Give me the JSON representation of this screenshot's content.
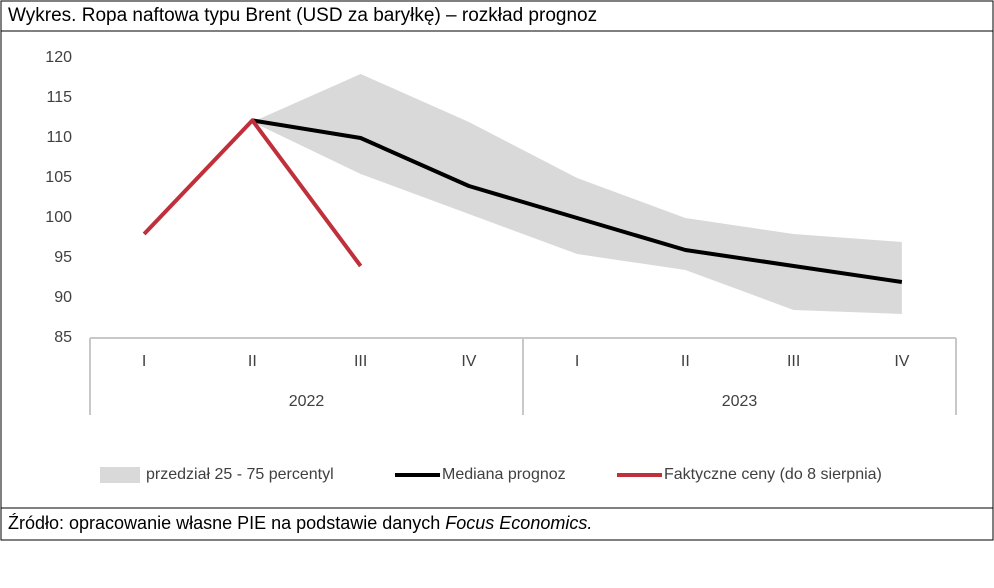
{
  "title": "Wykres. Ropa naftowa typu Brent (USD za baryłkę) – rozkład prognoz",
  "chart_data": {
    "type": "line",
    "groups": [
      {
        "label": "2022",
        "categories": [
          "I",
          "II",
          "III",
          "IV"
        ]
      },
      {
        "label": "2023",
        "categories": [
          "I",
          "II",
          "III",
          "IV"
        ]
      }
    ],
    "ylim": [
      85,
      120
    ],
    "yticks": [
      85,
      90,
      95,
      100,
      105,
      110,
      115,
      120
    ],
    "band": {
      "name": "przedział 25 - 75 percentyl",
      "color": "#d9d9d9",
      "low": [
        null,
        112,
        105.5,
        100.5,
        95.5,
        93.5,
        88.5,
        88
      ],
      "high": [
        null,
        112,
        118,
        112,
        105,
        100,
        98,
        97
      ]
    },
    "series": [
      {
        "name": "Mediana prognoz",
        "color": "#000000",
        "values": [
          null,
          112.2,
          110,
          104,
          100,
          96,
          94,
          92
        ]
      },
      {
        "name": "Faktyczne ceny (do 8 sierpnia)",
        "color": "#c0303a",
        "values": [
          98,
          112.2,
          94,
          null,
          null,
          null,
          null,
          null
        ]
      }
    ]
  },
  "source": {
    "text": "Źródło: opracowanie własne PIE na podstawie danych",
    "italic": "Focus Economics."
  }
}
